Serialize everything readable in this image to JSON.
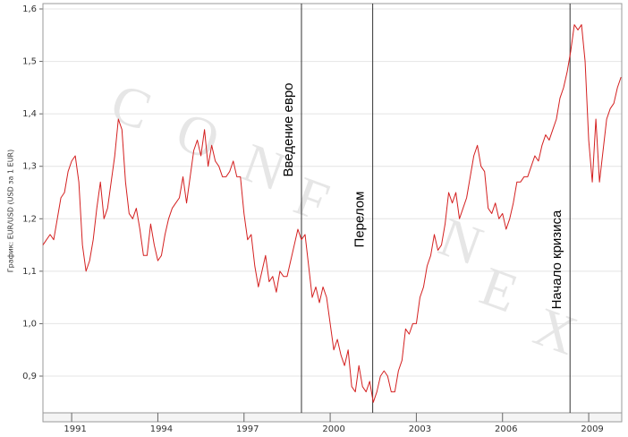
{
  "chart_data": {
    "type": "line",
    "ylabel": "График: EUR/USD (USD за 1 EUR)",
    "watermark": "CONFNEX",
    "xlim": [
      1990,
      2010.15
    ],
    "ylim": [
      0.83,
      1.6
    ],
    "xticks": [
      1991,
      1994,
      1997,
      2000,
      2003,
      2006,
      2009
    ],
    "yticks": [
      {
        "value": 0.9,
        "label": "0,9"
      },
      {
        "value": 1.0,
        "label": "1,0"
      },
      {
        "value": 1.1,
        "label": "1,1"
      },
      {
        "value": 1.2,
        "label": "1,2"
      },
      {
        "value": 1.3,
        "label": "1,3"
      },
      {
        "value": 1.4,
        "label": "1,4"
      },
      {
        "value": 1.5,
        "label": "1,5"
      },
      {
        "value": 1.6,
        "label": "1,6"
      }
    ],
    "grid": true,
    "annotations": [
      {
        "x": 1999,
        "label": "Введение евро"
      },
      {
        "x": 2001.48,
        "label": "Перелом"
      },
      {
        "x": 2008.35,
        "label": "Начало кризиса"
      }
    ],
    "x": [
      1990,
      1990.125,
      1990.25,
      1990.375,
      1990.5,
      1990.625,
      1990.75,
      1990.875,
      1991,
      1991.125,
      1991.25,
      1991.375,
      1991.5,
      1991.625,
      1991.75,
      1991.875,
      1992,
      1992.125,
      1992.25,
      1992.375,
      1992.5,
      1992.625,
      1992.75,
      1992.875,
      1993,
      1993.125,
      1993.25,
      1993.375,
      1993.5,
      1993.625,
      1993.75,
      1993.875,
      1994,
      1994.125,
      1994.25,
      1994.375,
      1994.5,
      1994.625,
      1994.75,
      1994.875,
      1995,
      1995.125,
      1995.25,
      1995.375,
      1995.5,
      1995.625,
      1995.75,
      1995.875,
      1996,
      1996.125,
      1996.25,
      1996.375,
      1996.5,
      1996.625,
      1996.75,
      1996.875,
      1997,
      1997.125,
      1997.25,
      1997.375,
      1997.5,
      1997.625,
      1997.75,
      1997.875,
      1998,
      1998.125,
      1998.25,
      1998.375,
      1998.5,
      1998.625,
      1998.75,
      1998.875,
      1999,
      1999.125,
      1999.25,
      1999.375,
      1999.5,
      1999.625,
      1999.75,
      1999.875,
      2000,
      2000.125,
      2000.25,
      2000.375,
      2000.5,
      2000.625,
      2000.75,
      2000.875,
      2001,
      2001.125,
      2001.25,
      2001.375,
      2001.5,
      2001.625,
      2001.75,
      2001.875,
      2002,
      2002.125,
      2002.25,
      2002.375,
      2002.5,
      2002.625,
      2002.75,
      2002.875,
      2003,
      2003.125,
      2003.25,
      2003.375,
      2003.5,
      2003.625,
      2003.75,
      2003.875,
      2004,
      2004.125,
      2004.25,
      2004.375,
      2004.5,
      2004.625,
      2004.75,
      2004.875,
      2005,
      2005.125,
      2005.25,
      2005.375,
      2005.5,
      2005.625,
      2005.75,
      2005.875,
      2006,
      2006.125,
      2006.25,
      2006.375,
      2006.5,
      2006.625,
      2006.75,
      2006.875,
      2007,
      2007.125,
      2007.25,
      2007.375,
      2007.5,
      2007.625,
      2007.75,
      2007.875,
      2008,
      2008.125,
      2008.25,
      2008.375,
      2008.5,
      2008.625,
      2008.75,
      2008.875,
      2009,
      2009.125,
      2009.25,
      2009.375,
      2009.5,
      2009.625,
      2009.75,
      2009.875,
      2010,
      2010.125
    ],
    "series": [
      {
        "color": "#d42020",
        "values": [
          1.15,
          1.16,
          1.17,
          1.16,
          1.2,
          1.24,
          1.25,
          1.29,
          1.31,
          1.32,
          1.27,
          1.15,
          1.1,
          1.12,
          1.16,
          1.22,
          1.27,
          1.2,
          1.22,
          1.27,
          1.32,
          1.39,
          1.37,
          1.27,
          1.21,
          1.2,
          1.22,
          1.18,
          1.13,
          1.13,
          1.19,
          1.15,
          1.12,
          1.13,
          1.17,
          1.2,
          1.22,
          1.23,
          1.24,
          1.28,
          1.23,
          1.28,
          1.33,
          1.35,
          1.32,
          1.37,
          1.3,
          1.34,
          1.31,
          1.3,
          1.28,
          1.28,
          1.29,
          1.31,
          1.28,
          1.28,
          1.21,
          1.16,
          1.17,
          1.11,
          1.07,
          1.1,
          1.13,
          1.08,
          1.09,
          1.06,
          1.1,
          1.09,
          1.09,
          1.12,
          1.15,
          1.18,
          1.16,
          1.17,
          1.11,
          1.05,
          1.07,
          1.04,
          1.07,
          1.05,
          1.0,
          0.95,
          0.97,
          0.94,
          0.92,
          0.95,
          0.88,
          0.87,
          0.92,
          0.88,
          0.87,
          0.89,
          0.85,
          0.87,
          0.9,
          0.91,
          0.9,
          0.87,
          0.87,
          0.91,
          0.93,
          0.99,
          0.98,
          1.0,
          1.0,
          1.05,
          1.07,
          1.11,
          1.13,
          1.17,
          1.14,
          1.15,
          1.19,
          1.25,
          1.23,
          1.25,
          1.2,
          1.22,
          1.24,
          1.28,
          1.32,
          1.34,
          1.3,
          1.29,
          1.22,
          1.21,
          1.23,
          1.2,
          1.21,
          1.18,
          1.2,
          1.23,
          1.27,
          1.27,
          1.28,
          1.28,
          1.3,
          1.32,
          1.31,
          1.34,
          1.36,
          1.35,
          1.37,
          1.39,
          1.43,
          1.45,
          1.48,
          1.52,
          1.57,
          1.56,
          1.57,
          1.5,
          1.35,
          1.27,
          1.39,
          1.27,
          1.33,
          1.39,
          1.41,
          1.42,
          1.45,
          1.47
        ]
      }
    ]
  }
}
